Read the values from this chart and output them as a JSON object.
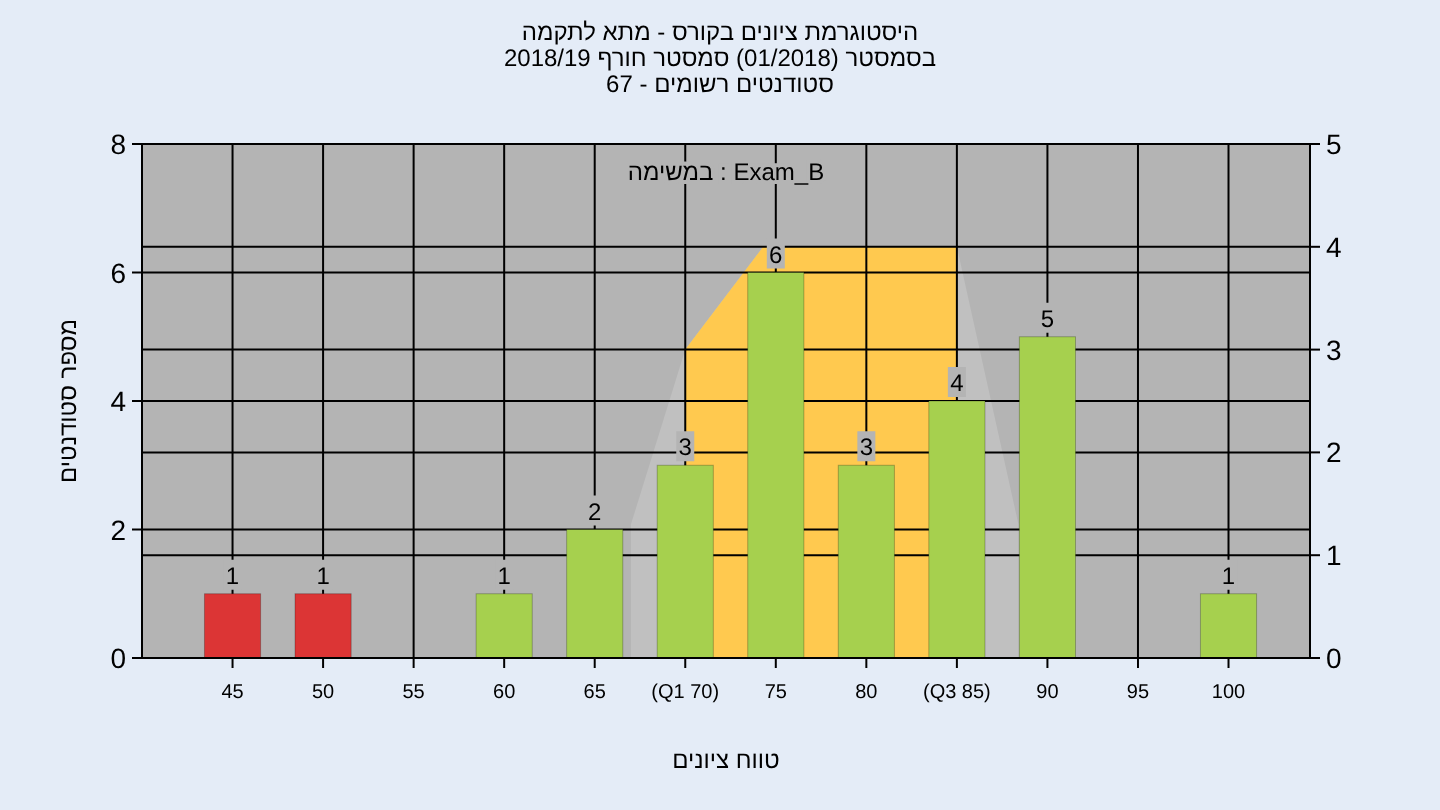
{
  "chart_data": {
    "type": "bar",
    "title": "היסטוגרמת ציונים בקורס - מתא לתקמה",
    "subtitle": "בסמסטר  (01/2018)  סמסטר חורף 2018/19\nסטודנטים רשומים - 67",
    "xlabel": "טווח ציונים",
    "ylabel": "מספר סטודנטים",
    "annotations": [
      "במשימה : Exam_B"
    ],
    "x": [
      45,
      50,
      60,
      65,
      70,
      75,
      80,
      85,
      90,
      100
    ],
    "xlim": [
      40,
      104.5
    ],
    "xticks": [
      45,
      50,
      55,
      60,
      65,
      {
        "value": 70,
        "label": "(Q1 70)"
      },
      75,
      80,
      {
        "value": 85,
        "label": "(Q3 85)"
      },
      90,
      95,
      100
    ],
    "ylim": [
      0,
      8
    ],
    "yticks": [
      0,
      2,
      4,
      6,
      8
    ],
    "y2lim": [
      0,
      5
    ],
    "y2ticks": [
      0,
      1,
      2,
      3,
      4,
      5
    ],
    "grid": true,
    "series": [
      {
        "type": "area",
        "axis": "y2",
        "color": "#c0c0c0",
        "x": [
          67,
          70,
          74.3,
          85,
          88.4
        ],
        "values": [
          1.3,
          3,
          4,
          4,
          1.3
        ]
      },
      {
        "type": "area",
        "axis": "y2",
        "color": "#ffc94f",
        "x": [
          70,
          70,
          74.3,
          85,
          85
        ],
        "values": [
          0,
          3,
          4,
          4,
          0
        ]
      },
      {
        "values": [
          1,
          1,
          1,
          2,
          3,
          6,
          3,
          4,
          5,
          1
        ],
        "value_labels": [
          "1",
          "1",
          "1",
          "2",
          "3",
          "6",
          "3",
          "4",
          "5",
          "1"
        ],
        "colors": [
          "#dc3535",
          "#dc3535",
          "#a6d04e",
          "#a6d04e",
          "#a6d04e",
          "#a6d04e",
          "#a6d04e",
          "#a6d04e",
          "#a6d04e",
          "#a6d04e"
        ]
      }
    ]
  }
}
